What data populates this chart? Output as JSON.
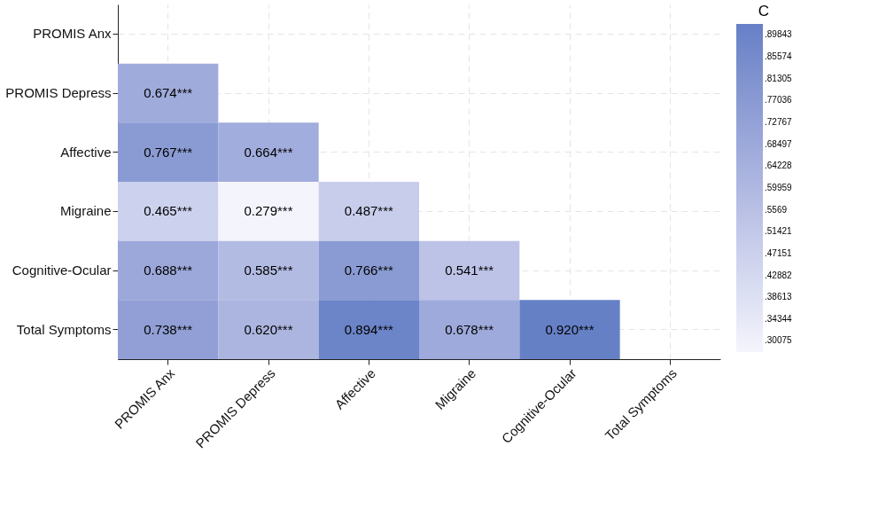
{
  "chart_data": {
    "type": "heatmap",
    "clabel": "C",
    "categories": [
      "PROMIS Anx",
      "PROMIS Depress",
      "Affective",
      "Migraine",
      "Cognitive-Ocular",
      "Total Symptoms"
    ],
    "y_categories": [
      "PROMIS Anx",
      "PROMIS Depress",
      "Affective",
      "Migraine",
      "Cognitive-Ocular",
      "Total Symptoms"
    ],
    "cells": [
      [
        null,
        null,
        null,
        null,
        null,
        null
      ],
      [
        0.674,
        null,
        null,
        null,
        null,
        null
      ],
      [
        0.767,
        0.664,
        null,
        null,
        null,
        null
      ],
      [
        0.465,
        0.279,
        0.487,
        null,
        null,
        null
      ],
      [
        0.688,
        0.585,
        0.766,
        0.541,
        null,
        null
      ],
      [
        0.738,
        0.62,
        0.894,
        0.678,
        0.92,
        null
      ]
    ],
    "cell_labels": [
      [
        null,
        null,
        null,
        null,
        null,
        null
      ],
      [
        "0.674***",
        null,
        null,
        null,
        null,
        null
      ],
      [
        "0.767***",
        "0.664***",
        null,
        null,
        null,
        null
      ],
      [
        "0.465***",
        "0.279***",
        "0.487***",
        null,
        null,
        null
      ],
      [
        "0.688***",
        "0.585***",
        "0.766***",
        "0.541***",
        null,
        null
      ],
      [
        "0.738***",
        "0.620***",
        "0.894***",
        "0.678***",
        "0.920***",
        null
      ]
    ],
    "clim": [
      0.279,
      0.92
    ],
    "cticks": [
      {
        "value": 0.89843,
        "label": ".89843"
      },
      {
        "value": 0.85574,
        "label": ".85574"
      },
      {
        "value": 0.81305,
        "label": ".81305"
      },
      {
        "value": 0.77036,
        "label": ".77036"
      },
      {
        "value": 0.72767,
        "label": ".72767"
      },
      {
        "value": 0.68497,
        "label": ".68497"
      },
      {
        "value": 0.64228,
        "label": ".64228"
      },
      {
        "value": 0.59959,
        "label": ".59959"
      },
      {
        "value": 0.5569,
        "label": ".5569"
      },
      {
        "value": 0.51421,
        "label": ".51421"
      },
      {
        "value": 0.47151,
        "label": ".47151"
      },
      {
        "value": 0.42882,
        "label": ".42882"
      },
      {
        "value": 0.38613,
        "label": ".38613"
      },
      {
        "value": 0.34344,
        "label": ".34344"
      },
      {
        "value": 0.30075,
        "label": ".30075"
      }
    ],
    "grid": true
  }
}
